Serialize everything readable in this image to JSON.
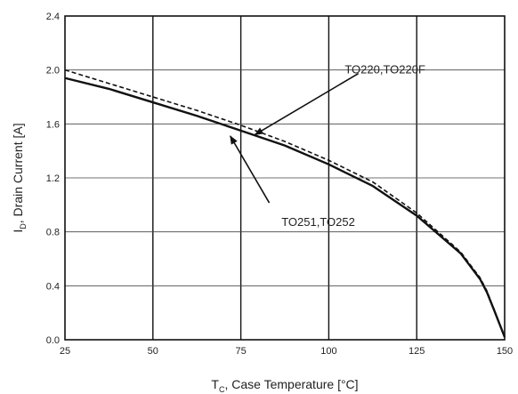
{
  "chart_data": {
    "type": "line",
    "title": "",
    "xlabel": "T_C, Case Temperature [°C]",
    "xlabel_parts": {
      "main": "T",
      "sub": "C",
      "rest": ", Case Temperature [°C]"
    },
    "ylabel": "I_D, Drain Current [A]",
    "ylabel_parts": {
      "main": "I",
      "sub": "D",
      "rest": ", Drain Current [A]"
    },
    "xlim": [
      25,
      150
    ],
    "ylim": [
      0.0,
      2.4
    ],
    "x_ticks": [
      25,
      50,
      75,
      100,
      125,
      150
    ],
    "x_tick_labels": [
      "25",
      "50",
      "75",
      "100",
      "125",
      "150"
    ],
    "y_ticks": [
      0.0,
      0.4,
      0.8,
      1.2,
      1.6,
      2.0,
      2.4
    ],
    "y_tick_labels": [
      "0.0",
      "0.4",
      "0.8",
      "1.2",
      "1.6",
      "2.0",
      "2.4"
    ],
    "grid": true,
    "series": [
      {
        "name": "TO220,TO220F",
        "color": "#111111",
        "style": "dashed",
        "x": [
          25,
          37.5,
          50,
          62.5,
          75,
          87.5,
          100,
          112.5,
          125,
          137.5,
          143,
          145,
          147,
          148.5,
          150
        ],
        "y": [
          2.0,
          1.9,
          1.8,
          1.7,
          1.59,
          1.47,
          1.33,
          1.17,
          0.94,
          0.65,
          0.46,
          0.36,
          0.22,
          0.12,
          0.02
        ]
      },
      {
        "name": "TO251,TO252",
        "color": "#111111",
        "style": "solid",
        "x": [
          25,
          37.5,
          50,
          62.5,
          75,
          87.5,
          100,
          112.5,
          125,
          137.5,
          143,
          145,
          147,
          148.5,
          150
        ],
        "y": [
          1.94,
          1.86,
          1.76,
          1.66,
          1.55,
          1.44,
          1.3,
          1.14,
          0.92,
          0.64,
          0.45,
          0.35,
          0.22,
          0.12,
          0.02
        ]
      }
    ],
    "annotations": [
      {
        "text": "TO220,TO220F",
        "series": "TO220,TO220F",
        "label_at": [
          116,
          2.0
        ],
        "arrow_to": [
          79,
          1.52
        ]
      },
      {
        "text": "TO251,TO252",
        "series": "TO251,TO252",
        "label_at": [
          97,
          0.87
        ],
        "arrow_to": [
          72,
          1.51
        ]
      }
    ]
  }
}
